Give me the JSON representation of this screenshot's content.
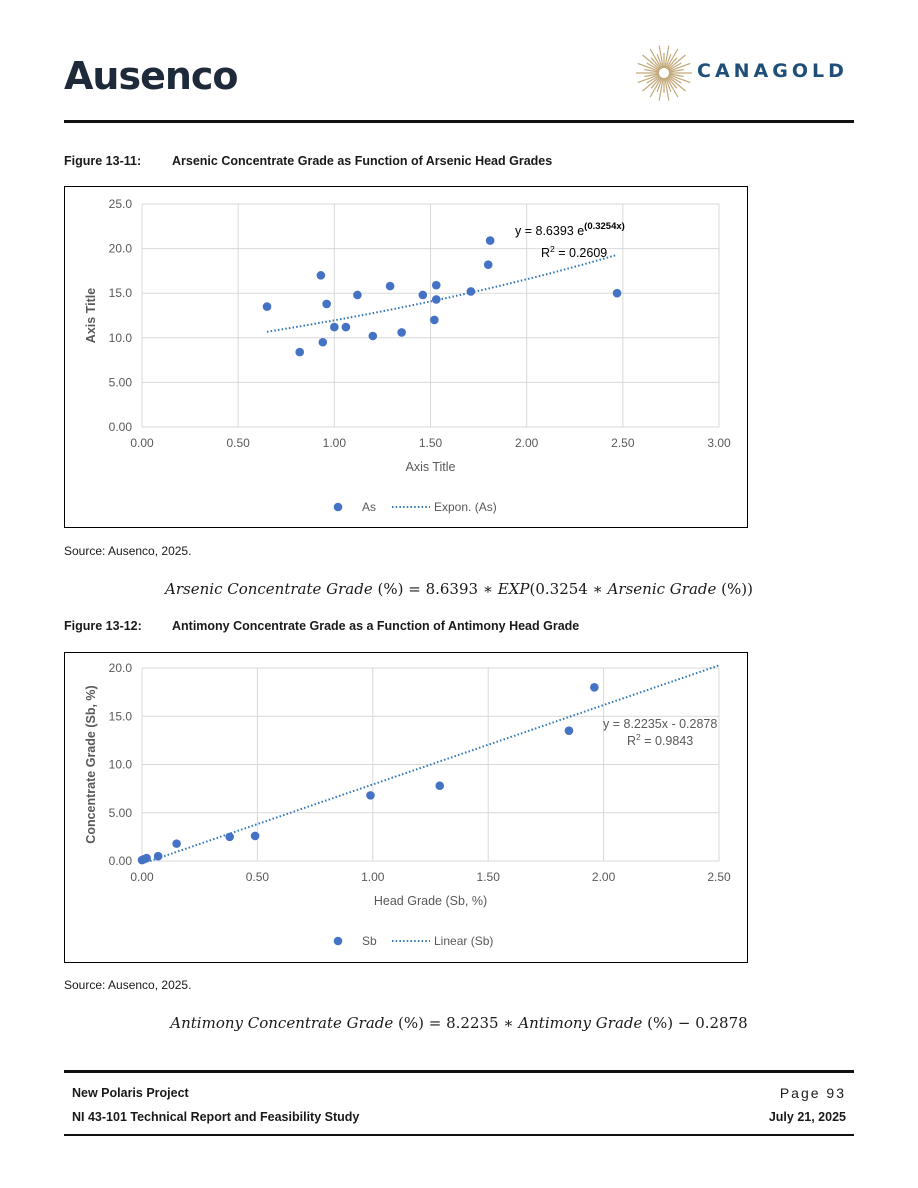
{
  "header": {
    "left_logo": "Ausenco",
    "right_logo": "CANAGOLD"
  },
  "figures": [
    {
      "number": "Figure 13-11:",
      "title": "Arsenic Concentrate Grade as Function of Arsenic Head Grades",
      "source": "Source: Ausenco, 2025.",
      "equation_parts": [
        "Arsenic Concentrate Grade",
        " (%) = 8.6393 ∗ ",
        "EXP",
        "(0.3254 ∗ ",
        "Arsenic Grade",
        " (%))"
      ]
    },
    {
      "number": "Figure 13-12:",
      "title": "Antimony Concentrate Grade as a Function of Antimony Head Grade",
      "source": "Source: Ausenco, 2025.",
      "equation_parts": [
        "Antimony Concentrate Grade",
        " (%) = 8.2235 ∗ ",
        "Antimony Grade",
        " (%) − 0.2878"
      ]
    }
  ],
  "chart_data": [
    {
      "type": "scatter",
      "xlabel": "Axis Title",
      "ylabel": "Axis Title",
      "xlim": [
        0,
        3
      ],
      "ylim": [
        0,
        25
      ],
      "x_ticks": [
        0,
        0.5,
        1,
        1.5,
        2,
        2.5,
        3
      ],
      "x_tick_labels": [
        "0.00",
        "0.50",
        "1.00",
        "1.50",
        "2.00",
        "2.50",
        "3.00"
      ],
      "y_ticks": [
        0,
        5,
        10,
        15,
        20,
        25
      ],
      "y_tick_labels": [
        "0.00",
        "5.00",
        "10.0",
        "15.0",
        "20.0",
        "25.0"
      ],
      "grid": true,
      "legend_placement": "bottom",
      "series": [
        {
          "name": "As",
          "color": "#4472c4",
          "x": [
            0.65,
            0.82,
            0.93,
            0.94,
            0.96,
            1.0,
            1.06,
            1.12,
            1.2,
            1.29,
            1.35,
            1.46,
            1.52,
            1.53,
            1.53,
            1.71,
            1.8,
            1.81,
            2.47
          ],
          "y": [
            13.5,
            8.4,
            17.0,
            9.5,
            13.8,
            11.2,
            11.2,
            14.8,
            10.2,
            15.8,
            10.6,
            14.8,
            12.0,
            14.3,
            15.9,
            15.2,
            18.2,
            20.9,
            15.0
          ]
        }
      ],
      "trendline": {
        "name": "Expon. (As)",
        "kind": "exponential",
        "a": 8.6393,
        "b": 0.3254,
        "x_range": [
          0.65,
          2.47
        ],
        "color": "#2e75b6",
        "equation_base": "y = 8.6393 e",
        "equation_exponent": "(0.3254x)",
        "r2_label": "R",
        "r2_value": " = 0.2609"
      }
    },
    {
      "type": "scatter",
      "xlabel": "Head Grade (Sb, %)",
      "ylabel": "Concentrate Grade (Sb, %)",
      "xlim": [
        0,
        2.5
      ],
      "ylim": [
        0,
        20
      ],
      "x_ticks": [
        0,
        0.5,
        1,
        1.5,
        2,
        2.5
      ],
      "x_tick_labels": [
        "0.00",
        "0.50",
        "1.00",
        "1.50",
        "2.00",
        "2.50"
      ],
      "y_ticks": [
        0,
        5,
        10,
        15,
        20
      ],
      "y_tick_labels": [
        "0.00",
        "5.00",
        "10.0",
        "15.0",
        "20.0"
      ],
      "grid": true,
      "legend_placement": "bottom",
      "series": [
        {
          "name": "Sb",
          "color": "#4472c4",
          "x": [
            0.0,
            0.01,
            0.02,
            0.07,
            0.15,
            0.38,
            0.49,
            0.99,
            1.29,
            1.85,
            1.96
          ],
          "y": [
            0.1,
            0.2,
            0.3,
            0.5,
            1.8,
            2.5,
            2.6,
            6.8,
            7.8,
            13.5,
            18.0
          ]
        }
      ],
      "trendline": {
        "name": "Linear (Sb)",
        "kind": "linear",
        "m": 8.2235,
        "c": -0.2878,
        "x_range": [
          0.035,
          2.5
        ],
        "color": "#2e75b6",
        "equation_text": "y = 8.2235x - 0.2878",
        "r2_label": "R",
        "r2_value": " = 0.9843"
      }
    }
  ],
  "footer": {
    "project": "New Polaris Project",
    "report": "NI 43-101 Technical Report and Feasibility Study",
    "page_label": "Page 93",
    "date": "July 21, 2025"
  }
}
